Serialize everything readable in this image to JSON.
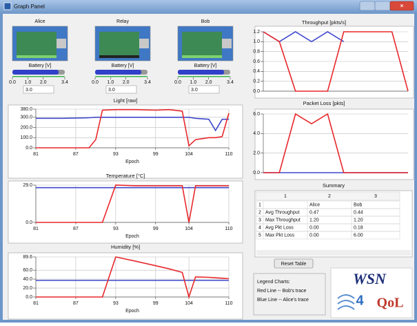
{
  "window": {
    "title": "Graph Panel"
  },
  "devices": [
    {
      "name": "Alice",
      "battery": {
        "label": "Battery [V]",
        "value": 3.0,
        "value_label": "3.0",
        "lim": [
          0,
          3.4
        ],
        "ticks": [
          {
            "value": 0,
            "label": "0.0"
          },
          {
            "value": 1,
            "label": "1.0"
          },
          {
            "value": 2,
            "label": "2.0"
          },
          3.4
        ]
      }
    },
    {
      "name": "Relay",
      "battery": {
        "label": "Battery [V]",
        "value": 3.0,
        "value_label": "3.0",
        "lim": [
          0,
          3.4
        ],
        "ticks": [
          {
            "value": 0,
            "label": "0.0"
          },
          {
            "value": 1,
            "label": "1.0"
          },
          {
            "value": 2,
            "label": "2.0"
          },
          3.4
        ]
      }
    },
    {
      "name": "Bob",
      "battery": {
        "label": "Battery [V]",
        "value": 3.0,
        "value_label": "3.0",
        "lim": [
          0,
          3.4
        ],
        "ticks": [
          {
            "value": 0,
            "label": "0.0"
          },
          {
            "value": 1,
            "label": "1.0"
          },
          {
            "value": 2,
            "label": "2.0"
          },
          3.4
        ]
      }
    }
  ],
  "chart_data": [
    {
      "type": "line",
      "title": "Light [raw]",
      "x_label": "Epoch",
      "grid": true,
      "x": [
        81,
        85,
        89,
        90,
        91,
        93,
        96,
        99,
        101,
        103,
        104,
        105,
        107,
        108,
        109,
        110
      ],
      "xlim": [
        81,
        110
      ],
      "xticks": [
        81,
        87,
        93,
        99,
        104,
        110
      ],
      "ylim": [
        0,
        380
      ],
      "yticks": [
        {
          "value": 0,
          "label": "0.0"
        },
        {
          "value": 100,
          "label": "100.0"
        },
        {
          "value": 200,
          "label": "200.0"
        },
        {
          "value": 300,
          "label": "300.0"
        },
        {
          "value": 380,
          "label": "380.0"
        }
      ],
      "series": [
        {
          "color": "#3f48cc",
          "values": [
            290,
            290,
            295,
            300,
            300,
            300,
            300,
            300,
            300,
            300,
            300,
            290,
            280,
            170,
            280,
            280
          ]
        },
        {
          "color": "#e8262a",
          "values": [
            0,
            0,
            0,
            80,
            370,
            375,
            375,
            370,
            375,
            360,
            20,
            80,
            100,
            100,
            110,
            340
          ]
        }
      ]
    },
    {
      "type": "line",
      "title": "Temperature [°C]",
      "x_label": "Epoch",
      "grid": true,
      "x": [
        81,
        85,
        89,
        90,
        91,
        93,
        96,
        99,
        101,
        103,
        104,
        105,
        107,
        108,
        109,
        110
      ],
      "xlim": [
        81,
        110
      ],
      "xticks": [
        81,
        87,
        93,
        99,
        104,
        110
      ],
      "ylim": [
        0,
        29
      ],
      "yticks": [
        {
          "value": 0,
          "label": "0.0"
        },
        {
          "value": 29,
          "label": "29.0"
        }
      ],
      "series": [
        {
          "color": "#3f48cc",
          "values": [
            27,
            27,
            27,
            27,
            27,
            27,
            27,
            27,
            27,
            27,
            27,
            27,
            27,
            27,
            27,
            27
          ]
        },
        {
          "color": "#e8262a",
          "values": [
            0,
            0,
            0,
            0,
            0,
            29,
            28.5,
            28.5,
            28.5,
            28.5,
            0,
            28.5,
            28.5,
            28.5,
            28.5,
            28.5
          ]
        }
      ]
    },
    {
      "type": "line",
      "title": "Humidity [%]",
      "x_label": "Epoch",
      "grid": true,
      "x": [
        81,
        85,
        89,
        90,
        91,
        93,
        96,
        99,
        101,
        103,
        104,
        105,
        107,
        108,
        109,
        110
      ],
      "xlim": [
        81,
        110
      ],
      "xticks": [
        81,
        87,
        93,
        99,
        104,
        110
      ],
      "ylim": [
        0,
        89.6
      ],
      "yticks": [
        {
          "value": 0,
          "label": "0.0"
        },
        {
          "value": 20,
          "label": "20.0"
        },
        {
          "value": 40,
          "label": "40.0"
        },
        {
          "value": 60,
          "label": "60.0"
        },
        89.6
      ],
      "series": [
        {
          "color": "#3f48cc",
          "values": [
            37,
            37,
            37,
            37,
            37,
            37,
            37,
            37,
            37,
            37,
            37,
            37,
            37,
            37,
            37,
            37
          ]
        },
        {
          "color": "#e8262a",
          "values": [
            0,
            0,
            0,
            0,
            0,
            89.6,
            80,
            70,
            63,
            55,
            0,
            45,
            44,
            43,
            42,
            41
          ]
        }
      ]
    },
    {
      "type": "line",
      "title": "Throughput [pkts/s]",
      "grid": true,
      "categories": [
        null,
        null,
        null,
        null,
        null,
        null,
        null,
        null,
        null,
        null
      ],
      "ylim": [
        0,
        1.2
      ],
      "yticks": [
        {
          "value": 0,
          "label": "0.0"
        },
        0.2,
        0.4,
        0.6,
        0.8,
        {
          "value": 1,
          "label": "1.0"
        },
        1.2
      ],
      "series": [
        {
          "color": "#3f48cc",
          "values": [
            1.2,
            1.0,
            1.2,
            1.0,
            1.2,
            1.0,
            null,
            null,
            null,
            null
          ]
        },
        {
          "color": "#e8262a",
          "values": [
            1.2,
            1.0,
            0,
            0,
            0,
            1.2,
            1.2,
            1.2,
            1.2,
            0
          ]
        }
      ]
    },
    {
      "type": "line",
      "title": "Packet Loss [pkts]",
      "grid": true,
      "categories": [
        null,
        null,
        null,
        null,
        null,
        null,
        null,
        null,
        null,
        null
      ],
      "ylim": [
        0,
        6
      ],
      "yticks": [
        {
          "value": 0,
          "label": "0.0"
        },
        {
          "value": 2,
          "label": "2.0"
        },
        {
          "value": 4,
          "label": "4.0"
        },
        {
          "value": 6,
          "label": "6.0"
        }
      ],
      "series": [
        {
          "color": "#3f48cc",
          "values": [
            0,
            0,
            0,
            0,
            0,
            0,
            0,
            0,
            0,
            0
          ]
        },
        {
          "color": "#e8262a",
          "values": [
            0,
            0,
            6,
            5,
            6,
            0,
            0,
            0,
            0,
            0
          ]
        }
      ]
    }
  ],
  "summary": {
    "title": "Summary",
    "columns": [
      "1",
      "2",
      "3"
    ],
    "rows": [
      {
        "index": "1",
        "cells": [
          null,
          "Alice",
          "Bob"
        ]
      },
      {
        "index": "2",
        "cells": [
          "Avg Throughput",
          "0.47",
          "0.44"
        ]
      },
      {
        "index": "3",
        "cells": [
          "Max Throughput",
          "1.20",
          "1.20"
        ]
      },
      {
        "index": "4",
        "cells": [
          "Avg Pkt Loss",
          "0.00",
          "0.18"
        ]
      },
      {
        "index": "5",
        "cells": [
          "Max Pkt Loss",
          "0.00",
          "6.00"
        ]
      }
    ]
  },
  "reset_button": "Reset Table",
  "legend": {
    "title": "Legend Charts:",
    "lines": [
      "Red Line -- Bob's trace",
      "Blue Line -- Alice's trace"
    ]
  },
  "logo": {
    "parts": [
      "WSN",
      "4",
      "QoL"
    ]
  }
}
